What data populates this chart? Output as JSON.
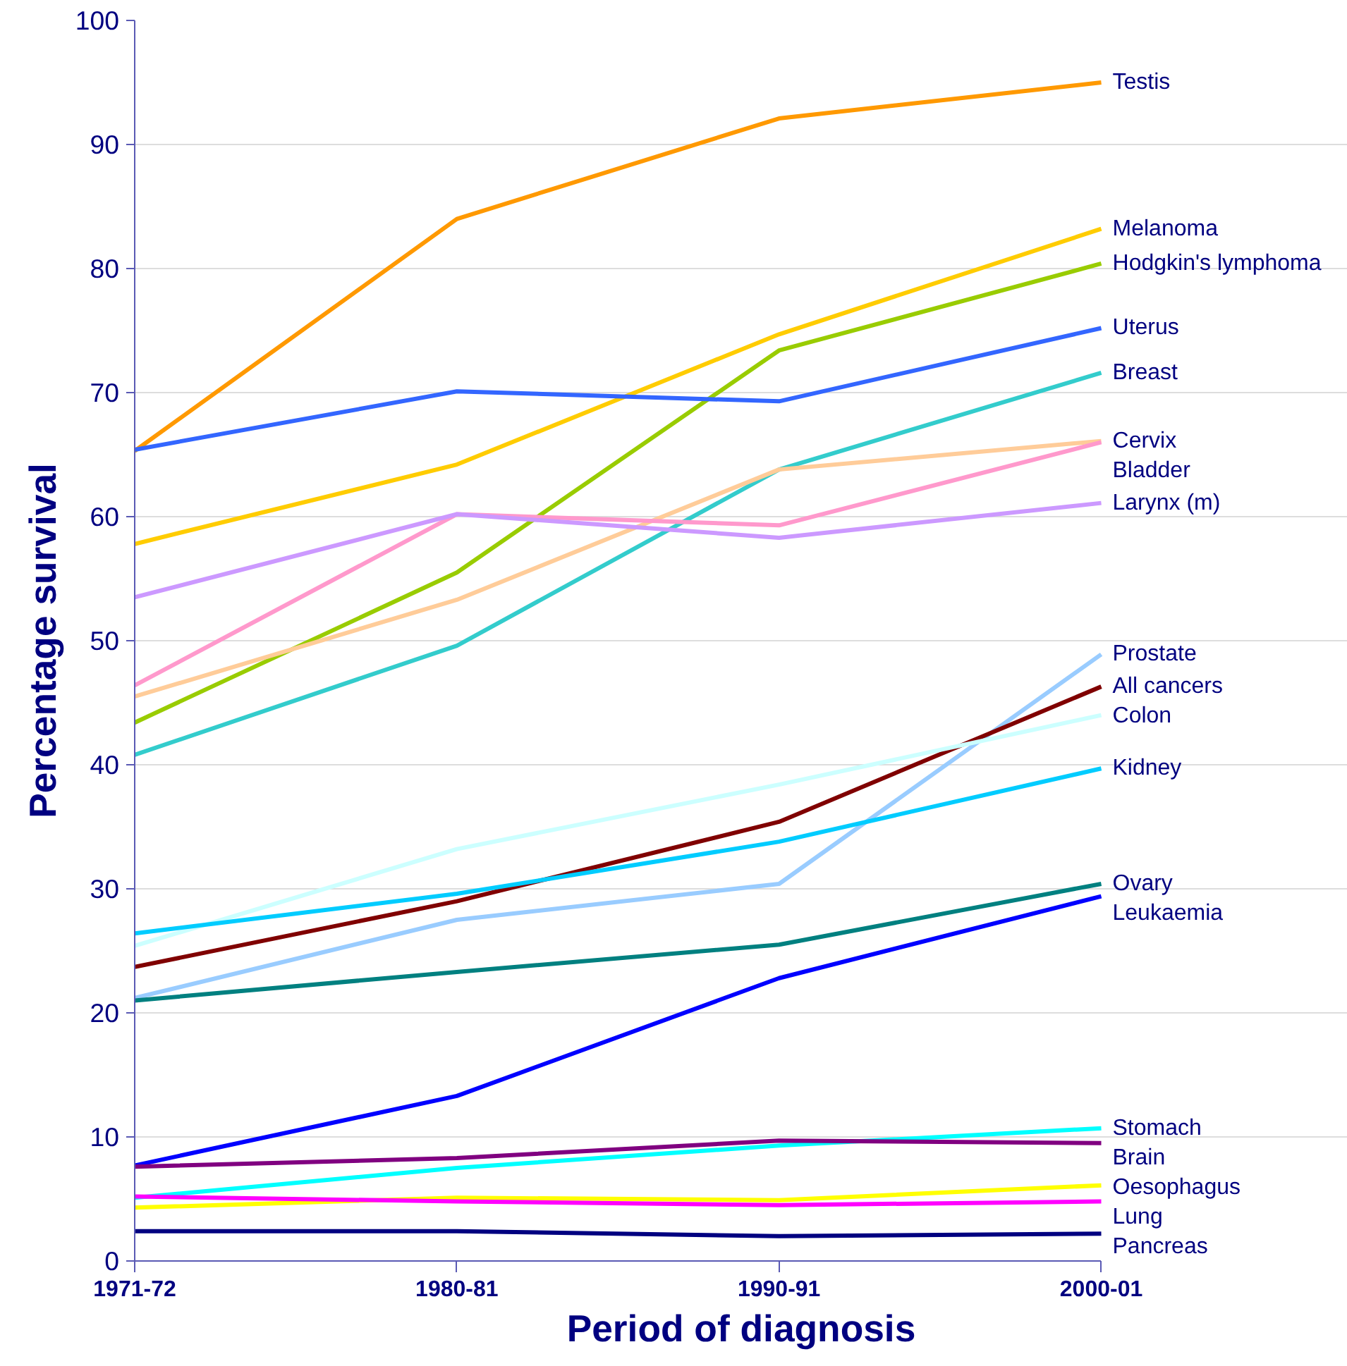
{
  "chart_data": {
    "type": "line",
    "xlabel": "Period of diagnosis",
    "ylabel": "Percentage survival",
    "categories": [
      "1971-72",
      "1980-81",
      "1990-91",
      "2000-01"
    ],
    "ylim": [
      0,
      100
    ],
    "yticks": [
      0,
      10,
      20,
      30,
      40,
      50,
      60,
      70,
      80,
      90,
      100
    ],
    "grid": "y",
    "marker": "none",
    "line_style": "solid",
    "series": [
      {
        "name": "Testis",
        "color": "#ff9900",
        "values": [
          65.3,
          84.0,
          92.1,
          95.0
        ]
      },
      {
        "name": "Melanoma",
        "color": "#ffcc00",
        "values": [
          57.8,
          64.2,
          74.7,
          83.2
        ]
      },
      {
        "name": "Hodgkin's lymphoma",
        "color": "#99cc00",
        "values": [
          43.4,
          55.5,
          73.4,
          80.4
        ]
      },
      {
        "name": "Uterus",
        "color": "#3366ff",
        "values": [
          65.4,
          70.1,
          69.3,
          75.2
        ]
      },
      {
        "name": "Breast",
        "color": "#33cccc",
        "values": [
          40.8,
          49.6,
          63.8,
          71.6
        ]
      },
      {
        "name": "Cervix",
        "color": "#ffcc99",
        "values": [
          45.5,
          53.3,
          63.8,
          66.1
        ]
      },
      {
        "name": "Bladder",
        "color": "#ff99cc",
        "values": [
          46.4,
          60.2,
          59.3,
          66.0
        ]
      },
      {
        "name": "Larynx (m)",
        "color": "#cc99ff",
        "values": [
          53.5,
          60.2,
          58.3,
          61.1
        ]
      },
      {
        "name": "Prostate",
        "color": "#99ccff",
        "values": [
          21.2,
          27.5,
          30.4,
          48.9
        ]
      },
      {
        "name": "All cancers",
        "color": "#800000",
        "values": [
          23.7,
          29.0,
          35.4,
          46.3
        ]
      },
      {
        "name": "Colon",
        "color": "#ccffff",
        "values": [
          25.4,
          33.2,
          38.4,
          44.0
        ]
      },
      {
        "name": "Kidney",
        "color": "#00ccff",
        "values": [
          26.4,
          29.6,
          33.8,
          39.7
        ]
      },
      {
        "name": "Ovary",
        "color": "#008080",
        "values": [
          21.0,
          23.3,
          25.5,
          30.4
        ]
      },
      {
        "name": "Leukaemia",
        "color": "#0000ff",
        "values": [
          7.7,
          13.3,
          22.8,
          29.4
        ]
      },
      {
        "name": "Stomach",
        "color": "#00ffff",
        "values": [
          5.1,
          7.5,
          9.3,
          10.7
        ]
      },
      {
        "name": "Brain",
        "color": "#800080",
        "values": [
          7.6,
          8.3,
          9.7,
          9.5
        ]
      },
      {
        "name": "Oesophagus",
        "color": "#ffff00",
        "values": [
          4.3,
          5.1,
          4.9,
          6.1
        ]
      },
      {
        "name": "Lung",
        "color": "#ff00ff",
        "values": [
          5.2,
          4.8,
          4.5,
          4.8
        ]
      },
      {
        "name": "Pancreas",
        "color": "#000080",
        "values": [
          2.4,
          2.4,
          2.0,
          2.2
        ]
      }
    ]
  }
}
